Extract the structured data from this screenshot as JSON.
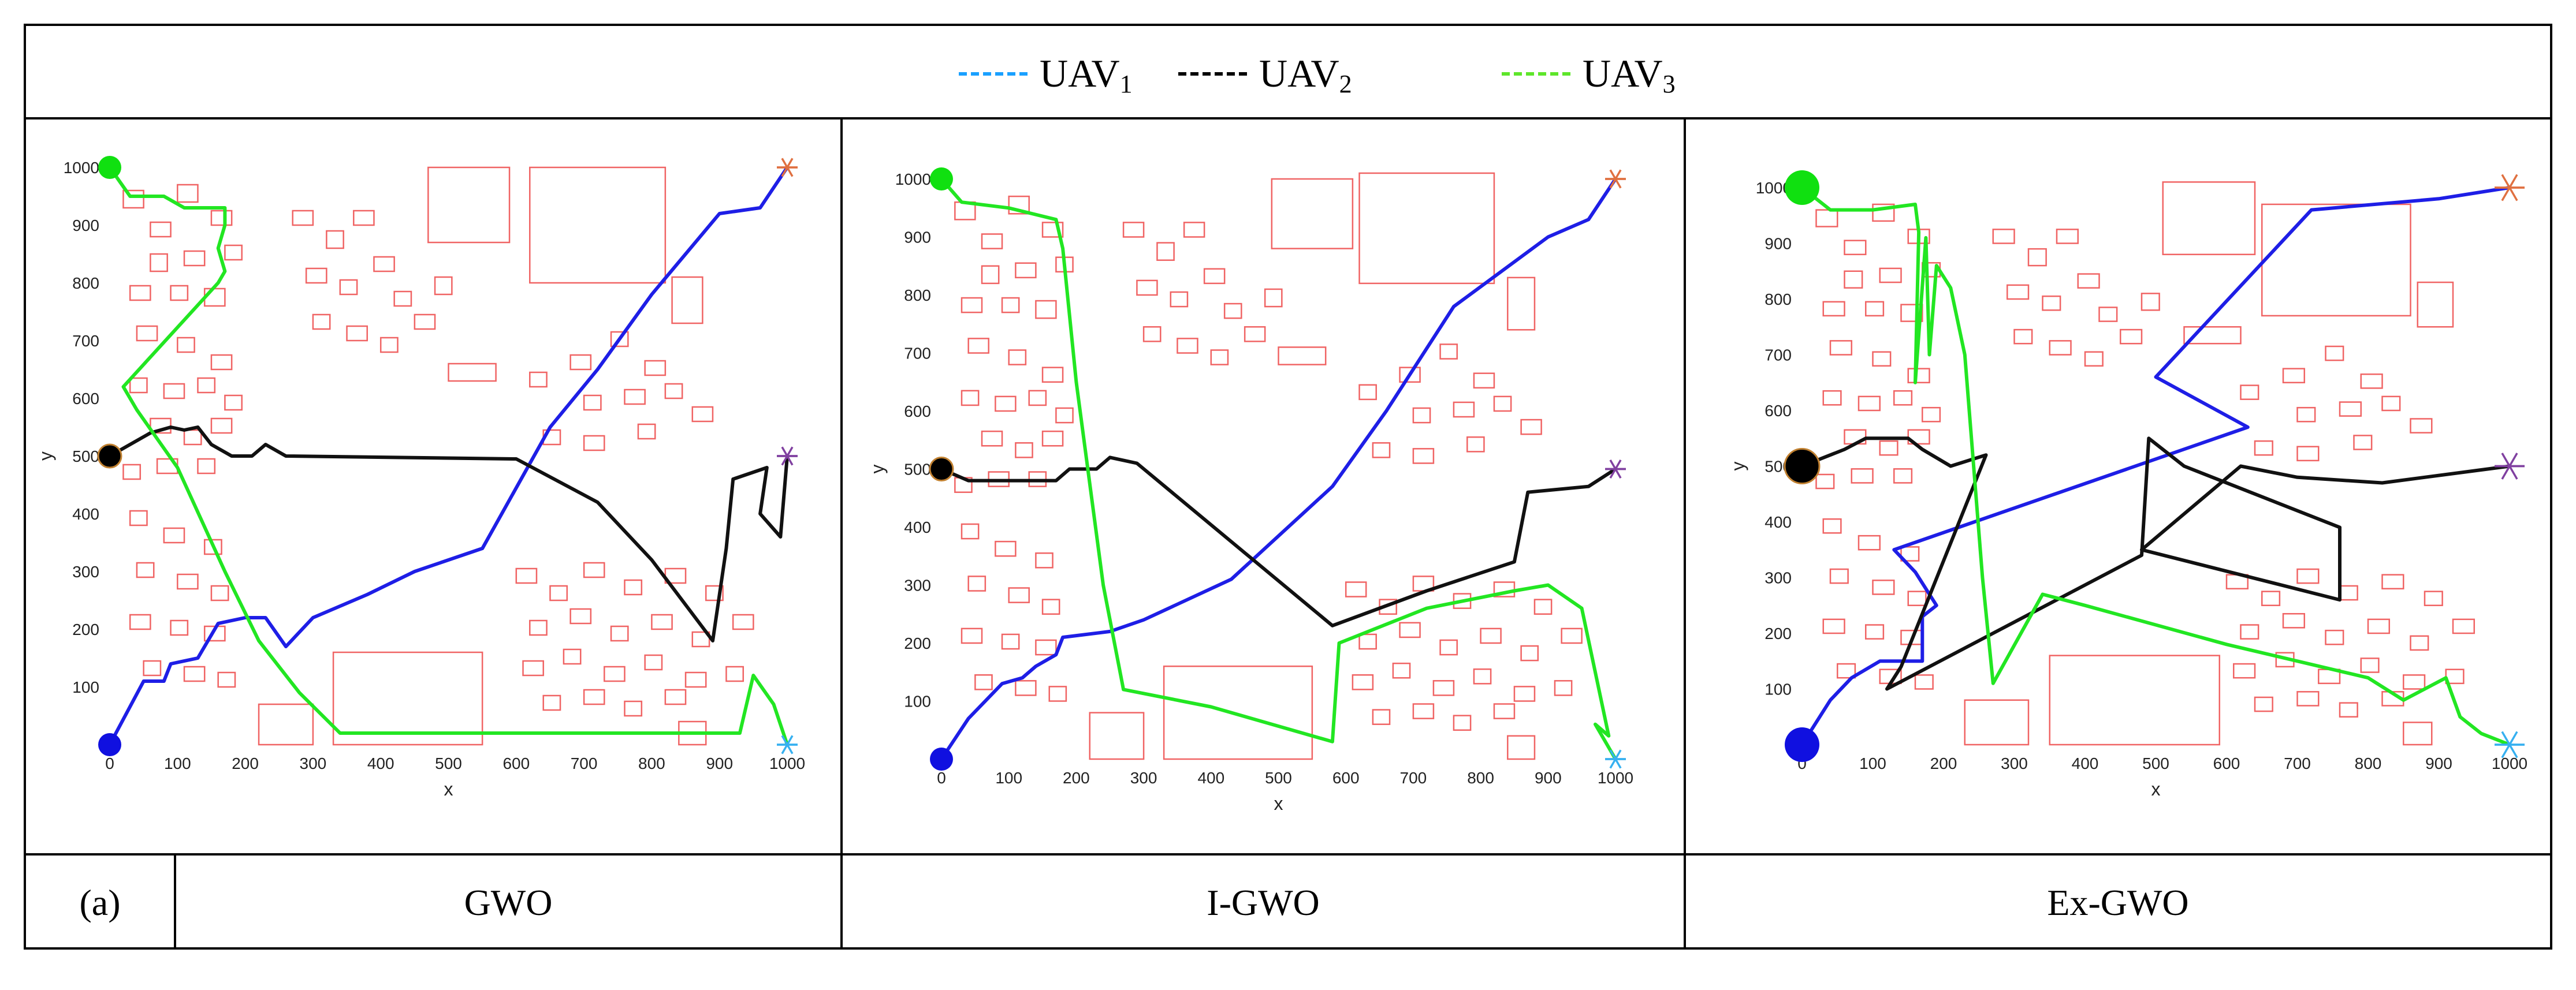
{
  "legend": {
    "items": [
      {
        "name": "UAV",
        "sub": "1",
        "color": "#1aa0ff",
        "dash": "------"
      },
      {
        "name": "UAV",
        "sub": "2",
        "color": "#000000",
        "dash": "------"
      },
      {
        "name": "UAV",
        "sub": "3",
        "color": "#5ee62a",
        "dash": "------"
      }
    ]
  },
  "table": {
    "row_label": "(a)",
    "methods": [
      "GWO",
      "I-GWO",
      "Ex-GWO"
    ]
  },
  "colors": {
    "obstacle": "#f06464",
    "uav1_path": "#1e1ee6",
    "uav2_path": "#111111",
    "uav3_path": "#22e622",
    "start1": "#1010e0",
    "start2": "#000000",
    "start3": "#10e010",
    "goal1": "#36b0f0",
    "goal2": "#8040a0",
    "goal3": "#e07040"
  },
  "chart_data": [
    {
      "type": "line",
      "title": "GWO",
      "xlabel": "x",
      "ylabel": "y",
      "xlim": [
        0,
        1000
      ],
      "ylim": [
        0,
        1000
      ],
      "xticks": [
        0,
        100,
        200,
        300,
        400,
        500,
        600,
        700,
        800,
        900,
        1000
      ],
      "yticks": [
        100,
        200,
        300,
        400,
        500,
        600,
        700,
        800,
        900,
        1000
      ],
      "series": [
        {
          "name": "UAV1",
          "points": [
            [
              0,
              0
            ],
            [
              50,
              110
            ],
            [
              80,
              110
            ],
            [
              90,
              140
            ],
            [
              130,
              150
            ],
            [
              140,
              170
            ],
            [
              160,
              210
            ],
            [
              200,
              220
            ],
            [
              230,
              220
            ],
            [
              260,
              170
            ],
            [
              300,
              220
            ],
            [
              380,
              260
            ],
            [
              450,
              300
            ],
            [
              550,
              340
            ],
            [
              650,
              550
            ],
            [
              720,
              650
            ],
            [
              800,
              780
            ],
            [
              900,
              920
            ],
            [
              960,
              930
            ],
            [
              1000,
              1000
            ]
          ]
        },
        {
          "name": "UAV2",
          "points": [
            [
              0,
              500
            ],
            [
              60,
              540
            ],
            [
              90,
              550
            ],
            [
              110,
              545
            ],
            [
              130,
              550
            ],
            [
              150,
              520
            ],
            [
              180,
              500
            ],
            [
              210,
              500
            ],
            [
              230,
              520
            ],
            [
              260,
              500
            ],
            [
              600,
              495
            ],
            [
              720,
              420
            ],
            [
              800,
              320
            ],
            [
              890,
              180
            ],
            [
              910,
              340
            ],
            [
              920,
              460
            ],
            [
              970,
              480
            ],
            [
              960,
              400
            ],
            [
              990,
              360
            ],
            [
              1000,
              500
            ]
          ]
        },
        {
          "name": "UAV3",
          "points": [
            [
              0,
              1000
            ],
            [
              30,
              950
            ],
            [
              80,
              950
            ],
            [
              110,
              930
            ],
            [
              170,
              930
            ],
            [
              170,
              900
            ],
            [
              160,
              860
            ],
            [
              170,
              820
            ],
            [
              160,
              800
            ],
            [
              20,
              620
            ],
            [
              40,
              580
            ],
            [
              100,
              480
            ],
            [
              170,
              300
            ],
            [
              220,
              180
            ],
            [
              280,
              90
            ],
            [
              340,
              20
            ],
            [
              500,
              20
            ],
            [
              700,
              20
            ],
            [
              870,
              20
            ],
            [
              930,
              20
            ],
            [
              940,
              70
            ],
            [
              950,
              120
            ],
            [
              980,
              70
            ],
            [
              1000,
              0
            ]
          ]
        }
      ]
    },
    {
      "type": "line",
      "title": "I-GWO",
      "xlabel": "x",
      "ylabel": "y",
      "xlim": [
        0,
        1000
      ],
      "ylim": [
        0,
        1000
      ],
      "xticks": [
        0,
        100,
        200,
        300,
        400,
        500,
        600,
        700,
        800,
        900,
        1000
      ],
      "yticks": [
        100,
        200,
        300,
        400,
        500,
        600,
        700,
        800,
        900,
        1000
      ],
      "series": [
        {
          "name": "UAV1",
          "points": [
            [
              0,
              0
            ],
            [
              40,
              70
            ],
            [
              90,
              130
            ],
            [
              120,
              140
            ],
            [
              140,
              160
            ],
            [
              170,
              180
            ],
            [
              180,
              210
            ],
            [
              250,
              220
            ],
            [
              300,
              240
            ],
            [
              430,
              310
            ],
            [
              580,
              470
            ],
            [
              660,
              600
            ],
            [
              760,
              780
            ],
            [
              900,
              900
            ],
            [
              960,
              930
            ],
            [
              1000,
              1000
            ]
          ]
        },
        {
          "name": "UAV2",
          "points": [
            [
              0,
              500
            ],
            [
              40,
              480
            ],
            [
              100,
              480
            ],
            [
              170,
              480
            ],
            [
              190,
              500
            ],
            [
              230,
              500
            ],
            [
              250,
              520
            ],
            [
              290,
              510
            ],
            [
              580,
              230
            ],
            [
              720,
              290
            ],
            [
              850,
              340
            ],
            [
              870,
              460
            ],
            [
              960,
              470
            ],
            [
              1000,
              500
            ]
          ]
        },
        {
          "name": "UAV3",
          "points": [
            [
              0,
              1000
            ],
            [
              30,
              960
            ],
            [
              100,
              950
            ],
            [
              170,
              930
            ],
            [
              180,
              880
            ],
            [
              200,
              650
            ],
            [
              240,
              300
            ],
            [
              270,
              120
            ],
            [
              400,
              90
            ],
            [
              580,
              30
            ],
            [
              590,
              200
            ],
            [
              720,
              260
            ],
            [
              850,
              290
            ],
            [
              900,
              300
            ],
            [
              950,
              260
            ],
            [
              990,
              40
            ],
            [
              970,
              60
            ],
            [
              1000,
              0
            ]
          ]
        }
      ]
    },
    {
      "type": "line",
      "title": "Ex-GWO",
      "xlabel": "x",
      "ylabel": "y",
      "xlim": [
        0,
        1000
      ],
      "ylim": [
        0,
        1000
      ],
      "xticks": [
        0,
        100,
        200,
        300,
        400,
        500,
        600,
        700,
        800,
        900,
        1000
      ],
      "yticks": [
        100,
        200,
        300,
        400,
        500,
        600,
        700,
        800,
        900,
        1000
      ],
      "series": [
        {
          "name": "UAV1",
          "points": [
            [
              0,
              0
            ],
            [
              40,
              80
            ],
            [
              70,
              120
            ],
            [
              110,
              150
            ],
            [
              170,
              150
            ],
            [
              170,
              230
            ],
            [
              190,
              250
            ],
            [
              160,
              310
            ],
            [
              130,
              350
            ],
            [
              630,
              570
            ],
            [
              500,
              660
            ],
            [
              720,
              960
            ],
            [
              900,
              980
            ],
            [
              1000,
              1000
            ]
          ]
        },
        {
          "name": "UAV2",
          "points": [
            [
              0,
              500
            ],
            [
              60,
              530
            ],
            [
              90,
              550
            ],
            [
              150,
              550
            ],
            [
              170,
              530
            ],
            [
              210,
              500
            ],
            [
              260,
              520
            ],
            [
              140,
              140
            ],
            [
              120,
              100
            ],
            [
              480,
              340
            ],
            [
              490,
              550
            ],
            [
              540,
              500
            ],
            [
              760,
              390
            ],
            [
              760,
              260
            ],
            [
              480,
              350
            ],
            [
              620,
              500
            ],
            [
              700,
              480
            ],
            [
              820,
              470
            ],
            [
              1000,
              500
            ]
          ]
        },
        {
          "name": "UAV3",
          "points": [
            [
              0,
              1000
            ],
            [
              40,
              960
            ],
            [
              100,
              960
            ],
            [
              160,
              970
            ],
            [
              165,
              920
            ],
            [
              160,
              650
            ],
            [
              175,
              910
            ],
            [
              180,
              700
            ],
            [
              190,
              860
            ],
            [
              210,
              820
            ],
            [
              230,
              700
            ],
            [
              255,
              300
            ],
            [
              270,
              110
            ],
            [
              340,
              270
            ],
            [
              400,
              250
            ],
            [
              600,
              180
            ],
            [
              800,
              120
            ],
            [
              850,
              80
            ],
            [
              910,
              120
            ],
            [
              930,
              50
            ],
            [
              960,
              20
            ],
            [
              1000,
              0
            ]
          ]
        }
      ]
    }
  ]
}
